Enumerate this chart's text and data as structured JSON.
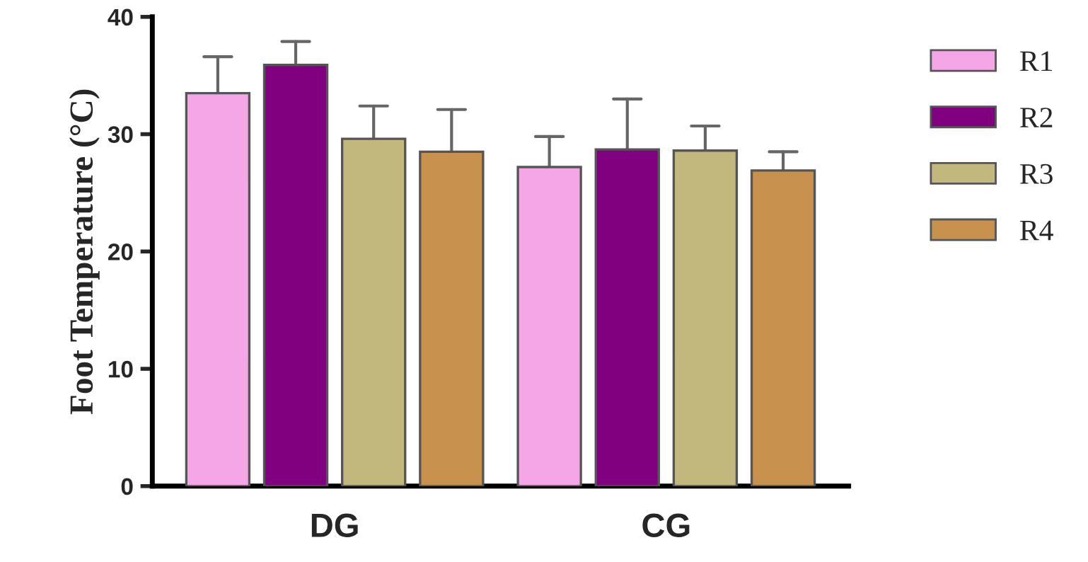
{
  "chart_data": {
    "type": "bar",
    "ylabel": "Foot Temperature (°C)",
    "categories": [
      "DG",
      "CG"
    ],
    "series": [
      {
        "name": "R1",
        "color": "#f4a6e6",
        "values": [
          33.5,
          27.2
        ],
        "errors": [
          [
            33.5,
            36.6
          ],
          [
            27.2,
            29.8
          ]
        ]
      },
      {
        "name": "R2",
        "color": "#800080",
        "values": [
          35.9,
          28.7
        ],
        "errors": [
          [
            35.9,
            37.9
          ],
          [
            28.7,
            33.0
          ]
        ]
      },
      {
        "name": "R3",
        "color": "#c2b87e",
        "values": [
          29.6,
          28.6
        ],
        "errors": [
          [
            29.6,
            32.4
          ],
          [
            28.6,
            30.7
          ]
        ]
      },
      {
        "name": "R4",
        "color": "#c8924e",
        "values": [
          28.5,
          26.9
        ],
        "errors": [
          [
            28.5,
            32.1
          ],
          [
            26.9,
            28.5
          ]
        ]
      }
    ],
    "ylim": [
      0,
      40
    ],
    "yticks": [
      0,
      10,
      20,
      30,
      40
    ],
    "grid": false,
    "legend": "right"
  }
}
